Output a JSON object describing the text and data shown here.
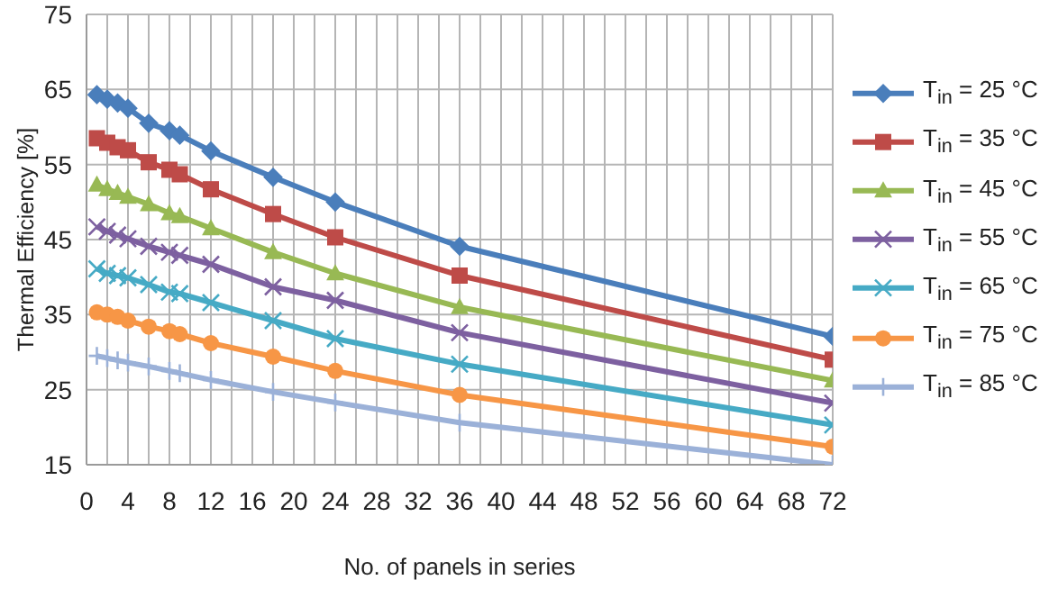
{
  "chart_data": {
    "type": "line",
    "xlabel": "No. of panels in series",
    "ylabel": "Thermal Efficiency [%]",
    "x": [
      1,
      2,
      3,
      4,
      6,
      8,
      9,
      12,
      18,
      24,
      36,
      72
    ],
    "series": [
      {
        "name": "T$_{in}$ = 25 °C",
        "color": "#4a7ebb",
        "marker": "diamond",
        "values": [
          64.3,
          63.7,
          63.2,
          62.5,
          60.5,
          59.5,
          58.9,
          56.8,
          53.3,
          50.0,
          44.1,
          32.1
        ]
      },
      {
        "name": "T$_{in}$ = 35 °C",
        "color": "#be4b48",
        "marker": "square",
        "values": [
          58.5,
          57.9,
          57.3,
          56.9,
          55.3,
          54.3,
          53.7,
          51.7,
          48.4,
          45.3,
          40.2,
          29.0
        ]
      },
      {
        "name": "T$_{in}$ = 45 °C",
        "color": "#98b954",
        "marker": "triangle",
        "values": [
          52.3,
          51.7,
          51.2,
          50.7,
          49.7,
          48.5,
          48.1,
          46.5,
          43.3,
          40.5,
          36.0,
          26.2
        ]
      },
      {
        "name": "T$_{in}$ = 55 °C",
        "color": "#7d60a0",
        "marker": "cross",
        "values": [
          46.7,
          46.1,
          45.6,
          45.1,
          44.1,
          43.3,
          42.9,
          41.7,
          38.7,
          36.9,
          32.6,
          23.2
        ]
      },
      {
        "name": "T$_{in}$ = 65 °C",
        "color": "#46aac5",
        "marker": "cross",
        "values": [
          41.1,
          40.5,
          40.2,
          39.9,
          39.0,
          38.0,
          37.8,
          36.6,
          34.2,
          31.8,
          28.4,
          20.3
        ]
      },
      {
        "name": "T$_{in}$ = 75 °C",
        "color": "#f79646",
        "marker": "circle",
        "values": [
          35.3,
          35.0,
          34.7,
          34.2,
          33.4,
          32.8,
          32.4,
          31.2,
          29.4,
          27.5,
          24.3,
          17.4
        ]
      },
      {
        "name": "T$_{in}$ = 85 °C",
        "color": "#9bb1d8",
        "marker": "plus",
        "values": [
          29.5,
          29.2,
          28.9,
          28.6,
          28.1,
          27.5,
          27.2,
          26.3,
          24.7,
          23.3,
          20.6,
          15.0
        ]
      }
    ],
    "xlim": [
      0,
      72
    ],
    "xticks": [
      0,
      {
        "value": 2,
        "label": null
      },
      4,
      {
        "value": 6,
        "label": null
      },
      8,
      {
        "value": 10,
        "label": null
      },
      12,
      {
        "value": 14,
        "label": null
      },
      16,
      {
        "value": 18,
        "label": null
      },
      20,
      {
        "value": 22,
        "label": null
      },
      24,
      {
        "value": 26,
        "label": null
      },
      28,
      {
        "value": 30,
        "label": null
      },
      32,
      {
        "value": 34,
        "label": null
      },
      36,
      {
        "value": 38,
        "label": null
      },
      40,
      {
        "value": 42,
        "label": null
      },
      44,
      {
        "value": 46,
        "label": null
      },
      48,
      {
        "value": 50,
        "label": null
      },
      52,
      {
        "value": 54,
        "label": null
      },
      56,
      {
        "value": 58,
        "label": null
      },
      60,
      {
        "value": 62,
        "label": null
      },
      64,
      {
        "value": 66,
        "label": null
      },
      68,
      {
        "value": 70,
        "label": null
      },
      72
    ],
    "ylim": [
      15,
      75
    ],
    "yticks": [
      15,
      25,
      35,
      45,
      55,
      65,
      75
    ],
    "grid": true,
    "legend": "right"
  }
}
